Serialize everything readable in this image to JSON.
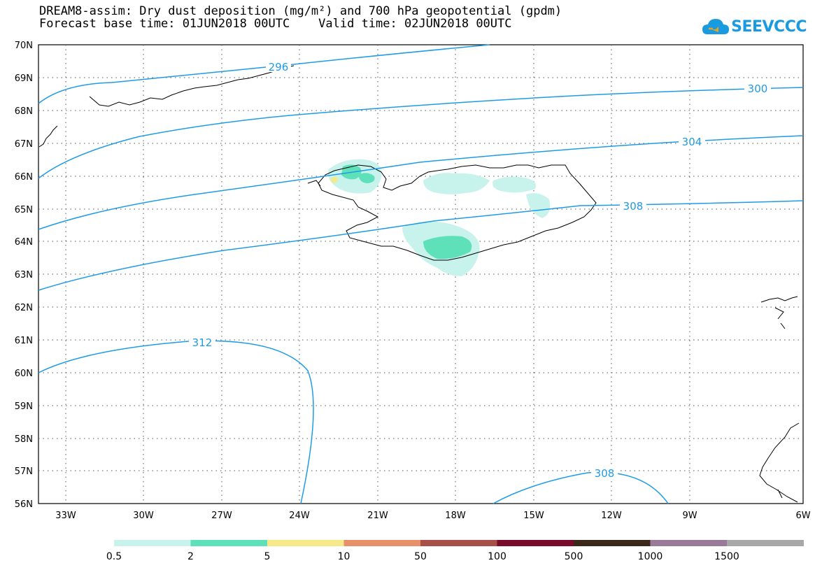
{
  "header": {
    "title_line1": "DREAM8-assim: Dry dust deposition (mg/m²) and 700 hPa geopotential (gpdm)",
    "title_line2": "Forecast base time: 01JUN2018 00UTC    Valid time: 02JUN2018 00UTC"
  },
  "logo": {
    "text": "SEEVCCC",
    "icon": "cloud-icon"
  },
  "map": {
    "lat_labels": [
      "70N",
      "69N",
      "68N",
      "67N",
      "66N",
      "65N",
      "64N",
      "63N",
      "62N",
      "61N",
      "60N",
      "59N",
      "58N",
      "57N",
      "56N"
    ],
    "lon_labels": [
      "33W",
      "30W",
      "27W",
      "24W",
      "21W",
      "18W",
      "15W",
      "12W",
      "9W",
      "6W"
    ],
    "contours": [
      {
        "value": "296"
      },
      {
        "value": "300"
      },
      {
        "value": "304"
      },
      {
        "value": "308"
      },
      {
        "value": "312"
      },
      {
        "value": "308"
      }
    ],
    "contour_color": "#1e9be6",
    "gridline_style": "dotted"
  },
  "legend": {
    "labels": [
      "0.5",
      "2",
      "5",
      "10",
      "50",
      "100",
      "500",
      "1000",
      "1500"
    ],
    "colors": [
      "#c8f2ec",
      "#5ee0b8",
      "#f5e98a",
      "#e8906a",
      "#a85048",
      "#7a0a2a",
      "#3a2818",
      "#9a7a9a",
      "#a8a8a8"
    ]
  }
}
